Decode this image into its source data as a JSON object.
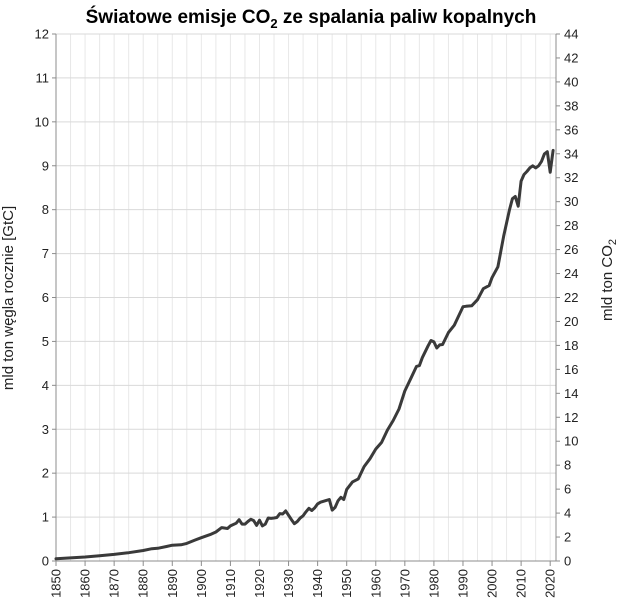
{
  "chart_data": {
    "type": "line",
    "title_main": "Światowe emisje CO",
    "title_sub": "2",
    "title_rest": " ze spalania paliw kopalnych",
    "ylabel_left": "mld ton węgla rocznie [GtC]",
    "ylabel_right_main": "mld ton CO",
    "ylabel_right_sub": "2",
    "xlim": [
      1850,
      2022
    ],
    "ylim_left": [
      0,
      12
    ],
    "ylim_right": [
      0,
      44
    ],
    "x_ticks": [
      1850,
      1860,
      1870,
      1880,
      1890,
      1900,
      1910,
      1920,
      1930,
      1940,
      1950,
      1960,
      1970,
      1980,
      1990,
      2000,
      2010,
      2020
    ],
    "y_ticks_left": [
      0,
      1,
      2,
      3,
      4,
      5,
      6,
      7,
      8,
      9,
      10,
      11,
      12
    ],
    "y_ticks_right": [
      0,
      2,
      4,
      6,
      8,
      10,
      12,
      14,
      16,
      18,
      20,
      22,
      24,
      26,
      28,
      30,
      32,
      34,
      36,
      38,
      40,
      42,
      44
    ],
    "grid": true,
    "series": [
      {
        "x": [
          1850,
          1855,
          1860,
          1865,
          1870,
          1875,
          1880,
          1883,
          1885,
          1888,
          1890,
          1893,
          1895,
          1898,
          1900,
          1903,
          1905,
          1907,
          1909,
          1910,
          1912,
          1913,
          1914,
          1915,
          1916,
          1917,
          1918,
          1919,
          1920,
          1921,
          1922,
          1923,
          1924,
          1925,
          1926,
          1927,
          1928,
          1929,
          1930,
          1931,
          1932,
          1933,
          1934,
          1935,
          1936,
          1937,
          1938,
          1939,
          1940,
          1941,
          1942,
          1943,
          1944,
          1945,
          1946,
          1947,
          1948,
          1949,
          1950,
          1952,
          1954,
          1956,
          1958,
          1960,
          1962,
          1964,
          1966,
          1968,
          1970,
          1972,
          1974,
          1975,
          1976,
          1978,
          1979,
          1980,
          1981,
          1982,
          1983,
          1985,
          1987,
          1989,
          1990,
          1991,
          1993,
          1995,
          1997,
          1999,
          2000,
          2002,
          2003,
          2004,
          2005,
          2006,
          2007,
          2008,
          2009,
          2010,
          2011,
          2012,
          2013,
          2014,
          2015,
          2016,
          2017,
          2018,
          2019,
          2020,
          2021
        ],
        "y": [
          0.05,
          0.07,
          0.09,
          0.12,
          0.15,
          0.19,
          0.24,
          0.28,
          0.29,
          0.33,
          0.36,
          0.37,
          0.4,
          0.48,
          0.53,
          0.6,
          0.66,
          0.76,
          0.74,
          0.8,
          0.86,
          0.94,
          0.84,
          0.84,
          0.9,
          0.95,
          0.92,
          0.81,
          0.93,
          0.8,
          0.84,
          0.98,
          0.97,
          0.98,
          0.99,
          1.08,
          1.07,
          1.14,
          1.04,
          0.94,
          0.85,
          0.9,
          0.98,
          1.03,
          1.12,
          1.2,
          1.15,
          1.21,
          1.3,
          1.34,
          1.36,
          1.38,
          1.4,
          1.16,
          1.22,
          1.37,
          1.45,
          1.4,
          1.63,
          1.8,
          1.87,
          2.15,
          2.33,
          2.55,
          2.7,
          2.98,
          3.2,
          3.46,
          3.87,
          4.15,
          4.43,
          4.45,
          4.63,
          4.9,
          5.02,
          4.99,
          4.85,
          4.92,
          4.93,
          5.2,
          5.37,
          5.65,
          5.79,
          5.8,
          5.81,
          5.95,
          6.2,
          6.27,
          6.45,
          6.7,
          7.05,
          7.4,
          7.7,
          8.0,
          8.25,
          8.3,
          8.08,
          8.65,
          8.8,
          8.87,
          8.95,
          9.0,
          8.95,
          9.0,
          9.1,
          9.27,
          9.32,
          8.85,
          9.35
        ]
      }
    ]
  }
}
